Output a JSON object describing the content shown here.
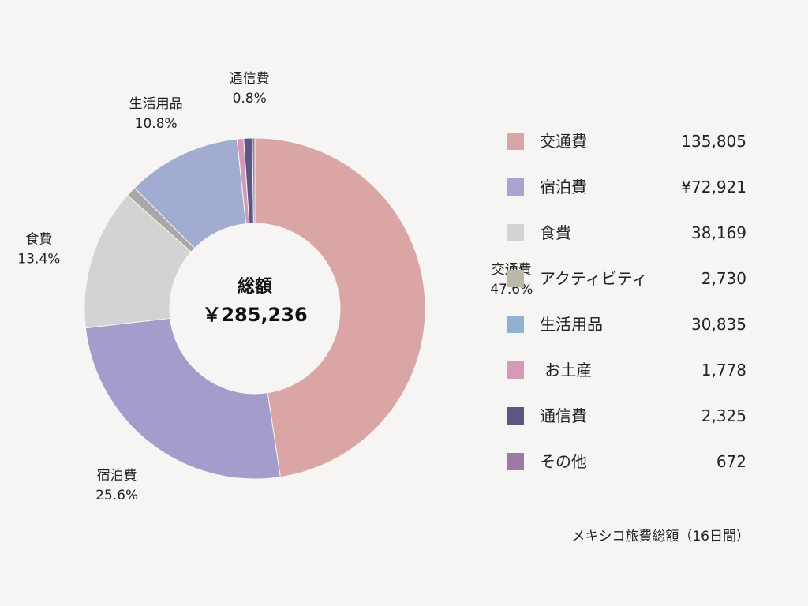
{
  "chart_data": {
    "type": "pie",
    "style": "donut",
    "center": {
      "title": "総額",
      "total": "￥285,236"
    },
    "slices": [
      {
        "name": "交通費",
        "value": 135805,
        "percent_label": "47.6%",
        "color": "#d9a5a5",
        "show_label": true
      },
      {
        "name": "宿泊費",
        "value": 72921,
        "percent_label": "25.6%",
        "color": "#a49dcb",
        "show_label": true
      },
      {
        "name": "食費",
        "value": 38169,
        "percent_label": "13.4%",
        "color": "#d3d3d3",
        "show_label": true
      },
      {
        "name": "アクティビティ",
        "value": 2730,
        "percent_label": "",
        "color": "#a8a8a8",
        "show_label": false
      },
      {
        "name": "生活用品",
        "value": 30835,
        "percent_label": "10.8%",
        "color": "#a2acd1",
        "show_label": true
      },
      {
        "name": "お土産",
        "value": 1778,
        "percent_label": "",
        "color": "#d39ab8",
        "show_label": false
      },
      {
        "name": "通信費",
        "value": 2325,
        "percent_label": "0.8%",
        "color": "#5d5583",
        "show_label": true
      },
      {
        "name": "その他",
        "value": 672,
        "percent_label": "",
        "color": "#9b7ba5",
        "show_label": false
      }
    ],
    "legend": [
      {
        "label": "交通費",
        "value": "135,805",
        "color": "#d9a5a5"
      },
      {
        "label": "宿泊費",
        "value": "¥72,921",
        "color": "#a9a3d2"
      },
      {
        "label": "食費",
        "value": "38,169",
        "color": "#d3d3d3"
      },
      {
        "label": "アクティビティ",
        "value": "2,730",
        "color": "#bdb8a7"
      },
      {
        "label": "生活用品",
        "value": "30,835",
        "color": "#8fb2d2"
      },
      {
        "label": " お土産",
        "value": "1,778",
        "color": "#d39ab8"
      },
      {
        "label": "通信費",
        "value": "2,325",
        "color": "#5d5583"
      },
      {
        "label": "その他",
        "value": "672",
        "color": "#9b7ba5"
      }
    ],
    "caption": "メキシコ旅費総額（16日間）",
    "legend_placement": "right"
  }
}
